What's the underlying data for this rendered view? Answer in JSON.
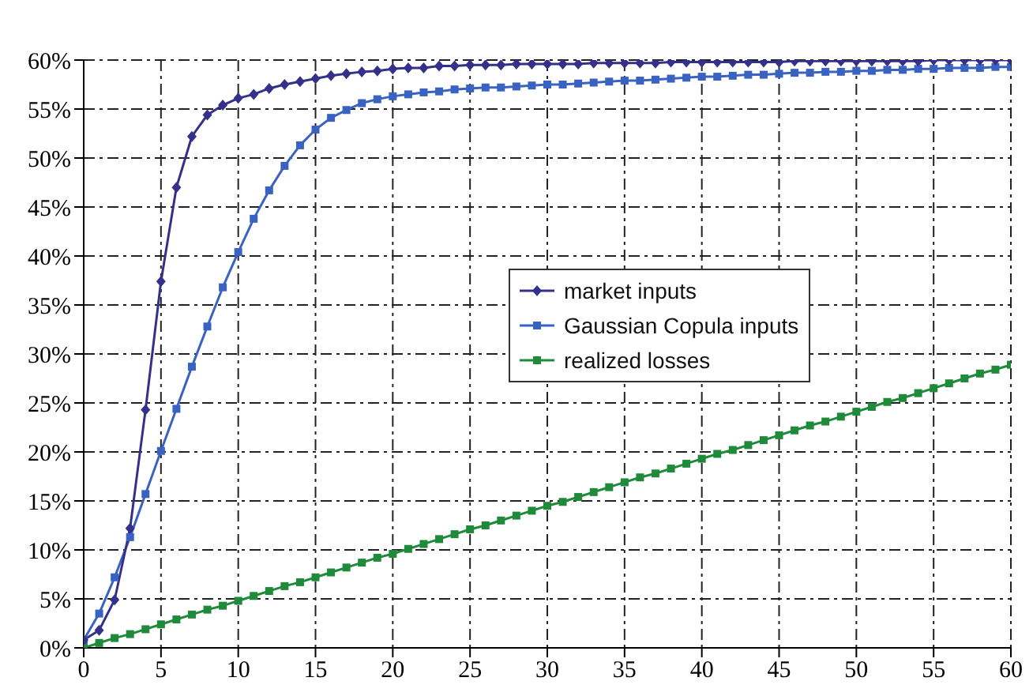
{
  "chart_data": {
    "type": "line",
    "x": [
      0,
      1,
      2,
      3,
      4,
      5,
      6,
      7,
      8,
      9,
      10,
      11,
      12,
      13,
      14,
      15,
      16,
      17,
      18,
      19,
      20,
      21,
      22,
      23,
      24,
      25,
      26,
      27,
      28,
      29,
      30,
      31,
      32,
      33,
      34,
      35,
      36,
      37,
      38,
      39,
      40,
      41,
      42,
      43,
      44,
      45,
      46,
      47,
      48,
      49,
      50,
      51,
      52,
      53,
      54,
      55,
      56,
      57,
      58,
      59,
      60
    ],
    "series": [
      {
        "name": "market inputs",
        "color": "#35308a",
        "marker": "diamond",
        "values": [
          0.8,
          1.8,
          4.9,
          12.2,
          24.3,
          37.4,
          47.0,
          52.2,
          54.4,
          55.4,
          56.1,
          56.5,
          57.1,
          57.5,
          57.8,
          58.1,
          58.4,
          58.6,
          58.8,
          58.9,
          59.1,
          59.2,
          59.2,
          59.4,
          59.4,
          59.5,
          59.5,
          59.5,
          59.6,
          59.6,
          59.6,
          59.6,
          59.6,
          59.7,
          59.7,
          59.7,
          59.7,
          59.7,
          59.8,
          59.8,
          59.8,
          59.8,
          59.8,
          59.8,
          59.8,
          59.8,
          59.9,
          59.9,
          59.9,
          59.9,
          59.9,
          59.9,
          59.9,
          59.9,
          59.9,
          60.0,
          60.0,
          60.0,
          60.0,
          60.0,
          60.0
        ]
      },
      {
        "name": "Gaussian Copula inputs",
        "color": "#3a62c0",
        "marker": "square",
        "values": [
          0.8,
          3.5,
          7.2,
          11.3,
          15.7,
          20.1,
          24.4,
          28.7,
          32.8,
          36.8,
          40.4,
          43.8,
          46.7,
          49.2,
          51.3,
          52.9,
          54.1,
          54.9,
          55.6,
          56.0,
          56.3,
          56.5,
          56.7,
          56.8,
          57.0,
          57.1,
          57.2,
          57.2,
          57.3,
          57.4,
          57.5,
          57.5,
          57.6,
          57.7,
          57.8,
          57.9,
          57.9,
          58.0,
          58.1,
          58.2,
          58.3,
          58.3,
          58.4,
          58.5,
          58.5,
          58.6,
          58.7,
          58.7,
          58.8,
          58.8,
          58.9,
          58.9,
          59.0,
          59.0,
          59.1,
          59.1,
          59.2,
          59.2,
          59.2,
          59.3,
          59.3
        ]
      },
      {
        "name": "realized losses",
        "color": "#1f8a3a",
        "marker": "square",
        "values": [
          0,
          0.5,
          1.0,
          1.4,
          1.9,
          2.4,
          2.9,
          3.4,
          3.9,
          4.3,
          4.8,
          5.3,
          5.8,
          6.3,
          6.7,
          7.2,
          7.7,
          8.2,
          8.7,
          9.2,
          9.6,
          10.1,
          10.6,
          11.1,
          11.6,
          12.1,
          12.5,
          13.0,
          13.5,
          14.0,
          14.5,
          14.9,
          15.4,
          15.9,
          16.4,
          16.9,
          17.4,
          17.8,
          18.3,
          18.8,
          19.3,
          19.8,
          20.2,
          20.7,
          21.2,
          21.7,
          22.2,
          22.7,
          23.1,
          23.6,
          24.1,
          24.6,
          25.1,
          25.5,
          26.0,
          26.5,
          27.0,
          27.5,
          28.0,
          28.4,
          28.9
        ]
      }
    ],
    "xlim": [
      0,
      60
    ],
    "xticks": [
      0,
      5,
      10,
      15,
      20,
      25,
      30,
      35,
      40,
      45,
      50,
      55,
      60
    ],
    "ylim": [
      0,
      60
    ],
    "yticks": [
      {
        "value": 0,
        "label": "0%"
      },
      {
        "value": 5,
        "label": "5%"
      },
      {
        "value": 10,
        "label": "10%"
      },
      {
        "value": 15,
        "label": "15%"
      },
      {
        "value": 20,
        "label": "20%"
      },
      {
        "value": 25,
        "label": "25%"
      },
      {
        "value": 30,
        "label": "30%"
      },
      {
        "value": 35,
        "label": "35%"
      },
      {
        "value": 40,
        "label": "40%"
      },
      {
        "value": 45,
        "label": "45%"
      },
      {
        "value": 50,
        "label": "50%"
      },
      {
        "value": 55,
        "label": "55%"
      },
      {
        "value": 60,
        "label": "60%"
      }
    ],
    "grid": true,
    "legend": "right",
    "line_style": "solid"
  }
}
